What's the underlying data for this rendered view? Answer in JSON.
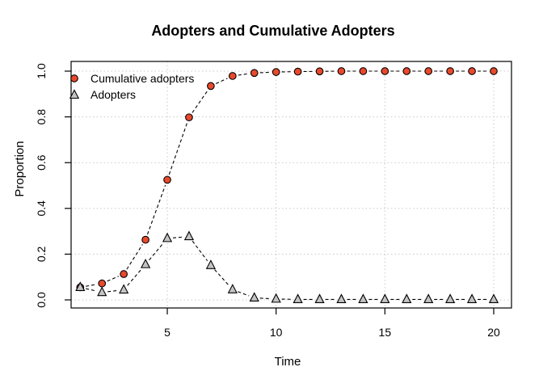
{
  "chart_data": {
    "type": "line",
    "title": "Adopters and Cumulative Adopters",
    "xlabel": "Time",
    "ylabel": "Proportion",
    "x": [
      1,
      2,
      3,
      4,
      5,
      6,
      7,
      8,
      9,
      10,
      11,
      12,
      13,
      14,
      15,
      16,
      17,
      18,
      19,
      20
    ],
    "series": [
      {
        "name": "Cumulative adopters",
        "marker": "circle",
        "marker_fill": "#E8492C",
        "line_style": "dashed",
        "values": [
          0.055,
          0.072,
          0.113,
          0.263,
          0.525,
          0.798,
          0.935,
          0.979,
          0.992,
          0.996,
          0.998,
          0.999,
          1.0,
          1.0,
          1.0,
          1.0,
          1.0,
          1.0,
          1.0,
          1.0
        ]
      },
      {
        "name": "Adopters",
        "marker": "triangle",
        "marker_fill": "#C4C4C4",
        "line_style": "dashed",
        "values": [
          0.055,
          0.033,
          0.044,
          0.155,
          0.269,
          0.277,
          0.151,
          0.045,
          0.009,
          0.004,
          0.002,
          0.002,
          0.002,
          0.002,
          0.002,
          0.002,
          0.002,
          0.002,
          0.002,
          0.002
        ]
      }
    ],
    "xlim": [
      1,
      20
    ],
    "ylim": [
      0.0,
      1.0
    ],
    "xticks": [
      5,
      10,
      15,
      20
    ],
    "xtick_labels": [
      "5",
      "10",
      "15",
      "20"
    ],
    "yticks": [
      0.0,
      0.2,
      0.4,
      0.6,
      0.8,
      1.0
    ],
    "ytick_labels": [
      "0.0",
      "0.2",
      "0.4",
      "0.6",
      "0.8",
      "1.0"
    ],
    "grid": true,
    "grid_style": "dotted",
    "legend_position": "top-left",
    "colors": {
      "line": "#000000",
      "marker_outline": "#000000",
      "grid": "#C9C9C9",
      "box": "#000000",
      "background": "#FFFFFF"
    }
  }
}
